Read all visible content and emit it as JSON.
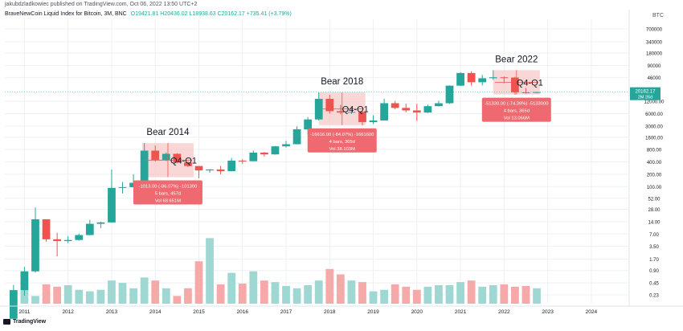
{
  "header": {
    "publisher": "jakubdzladkowiec published on TradingView.com, Oct 06, 2022 13:50 UTC+2",
    "symbol_line": "BraveNewCoin Liquid Index for Bitcoin, 3M, BNC",
    "open": "O19421.81",
    "high": "H20436.02",
    "low": "L18938.63",
    "close": "C20162.17",
    "change": "+735.41 (+3.79%)",
    "currency": "BTC"
  },
  "footer": {
    "brand": "TradingView"
  },
  "colors": {
    "up": "#26a69a",
    "down": "#ef5350",
    "vol_up": "#9fd8d2",
    "vol_down": "#f5a9a9",
    "bg": "#ffffff",
    "grid": "#eef0f3",
    "axis_text": "#131722",
    "badge_fill": "#ee6a70",
    "zone_fill": "#f7c9ca",
    "price_tag": "#26a69a"
  },
  "chart_data": {
    "type": "candlestick",
    "title": "BraveNewCoin Liquid Index for Bitcoin, 3M, BNC",
    "interval": "3M",
    "y_scale": "log",
    "ylim": [
      0.14,
      1200000
    ],
    "y_ticks": [
      0.23,
      0.45,
      0.9,
      1.7,
      3.5,
      7.0,
      14.0,
      28.0,
      52.0,
      100.0,
      200.0,
      400.0,
      800.0,
      1600.0,
      3000.0,
      6000.0,
      12000.0,
      46000,
      90000,
      180000,
      340000,
      700000
    ],
    "y_tick_labels": [
      "0.23",
      "0.45",
      "0.90",
      "1.70",
      "3.50",
      "7.00",
      "14.00",
      "28.00",
      "52.00",
      "100.00",
      "200.00",
      "400.00",
      "800.00",
      "1600.00",
      "3000.00",
      "6000.00",
      "12000.00",
      "46000",
      "90000",
      "180000",
      "340000",
      "700000"
    ],
    "x_labels": [
      "2011",
      "2012",
      "2013",
      "2014",
      "2015",
      "2016",
      "2017",
      "2018",
      "2019",
      "2020",
      "2021",
      "2022",
      "2023",
      "2024"
    ],
    "x_label_years": [
      2011,
      2012,
      2013,
      2014,
      2015,
      2016,
      2017,
      2018,
      2019,
      2020,
      2021,
      2022,
      2023,
      2024
    ],
    "xlim": [
      2010.55,
      2024.85
    ],
    "candles": [
      {
        "t": 2010.75,
        "o": 0.06,
        "h": 0.4,
        "l": 0.06,
        "c": 0.3
      },
      {
        "t": 2011.0,
        "o": 0.3,
        "h": 1.1,
        "l": 0.22,
        "c": 0.86
      },
      {
        "t": 2011.25,
        "o": 0.86,
        "h": 31,
        "l": 0.8,
        "c": 16
      },
      {
        "t": 2011.5,
        "o": 16,
        "h": 16,
        "l": 4.5,
        "c": 5.2
      },
      {
        "t": 2011.75,
        "o": 5.2,
        "h": 7.5,
        "l": 2.0,
        "c": 4.7
      },
      {
        "t": 2012.0,
        "o": 4.7,
        "h": 6.2,
        "l": 4.2,
        "c": 5.0
      },
      {
        "t": 2012.25,
        "o": 5.0,
        "h": 7.2,
        "l": 4.8,
        "c": 6.6
      },
      {
        "t": 2012.5,
        "o": 6.6,
        "h": 15.4,
        "l": 6.5,
        "c": 12.4
      },
      {
        "t": 2012.75,
        "o": 12.4,
        "h": 14.0,
        "l": 9.8,
        "c": 13.4
      },
      {
        "t": 2013.0,
        "o": 13.4,
        "h": 262,
        "l": 13.2,
        "c": 93
      },
      {
        "t": 2013.25,
        "o": 93,
        "h": 130,
        "l": 68,
        "c": 97
      },
      {
        "t": 2013.5,
        "o": 97,
        "h": 200,
        "l": 95,
        "c": 124
      },
      {
        "t": 2013.75,
        "o": 124,
        "h": 1151,
        "l": 120,
        "c": 754
      },
      {
        "t": 2014.0,
        "o": 754,
        "h": 1000,
        "l": 410,
        "c": 450
      },
      {
        "t": 2014.25,
        "o": 450,
        "h": 680,
        "l": 420,
        "c": 630
      },
      {
        "t": 2014.5,
        "o": 630,
        "h": 650,
        "l": 370,
        "c": 388
      },
      {
        "t": 2014.75,
        "o": 388,
        "h": 420,
        "l": 300,
        "c": 318
      },
      {
        "t": 2015.0,
        "o": 318,
        "h": 318,
        "l": 160,
        "c": 248
      },
      {
        "t": 2015.25,
        "o": 248,
        "h": 265,
        "l": 218,
        "c": 262
      },
      {
        "t": 2015.5,
        "o": 262,
        "h": 320,
        "l": 200,
        "c": 238
      },
      {
        "t": 2015.75,
        "o": 238,
        "h": 500,
        "l": 235,
        "c": 430
      },
      {
        "t": 2016.0,
        "o": 430,
        "h": 470,
        "l": 360,
        "c": 416
      },
      {
        "t": 2016.25,
        "o": 416,
        "h": 760,
        "l": 415,
        "c": 673
      },
      {
        "t": 2016.5,
        "o": 673,
        "h": 700,
        "l": 540,
        "c": 610
      },
      {
        "t": 2016.75,
        "o": 610,
        "h": 980,
        "l": 600,
        "c": 960
      },
      {
        "t": 2017.0,
        "o": 960,
        "h": 1300,
        "l": 890,
        "c": 1080
      },
      {
        "t": 2017.25,
        "o": 1080,
        "h": 2970,
        "l": 1070,
        "c": 2490
      },
      {
        "t": 2017.5,
        "o": 2490,
        "h": 4960,
        "l": 1850,
        "c": 4340
      },
      {
        "t": 2017.75,
        "o": 4340,
        "h": 19800,
        "l": 4100,
        "c": 13800
      },
      {
        "t": 2018.0,
        "o": 13800,
        "h": 17200,
        "l": 6000,
        "c": 6900
      },
      {
        "t": 2018.25,
        "o": 6900,
        "h": 9900,
        "l": 5800,
        "c": 6390
      },
      {
        "t": 2018.5,
        "o": 6390,
        "h": 8490,
        "l": 5880,
        "c": 6625
      },
      {
        "t": 2018.75,
        "o": 6625,
        "h": 6800,
        "l": 3150,
        "c": 3740
      },
      {
        "t": 2019.0,
        "o": 3740,
        "h": 5500,
        "l": 3350,
        "c": 4100
      },
      {
        "t": 2019.25,
        "o": 4100,
        "h": 13880,
        "l": 4050,
        "c": 10800
      },
      {
        "t": 2019.5,
        "o": 10800,
        "h": 12300,
        "l": 7700,
        "c": 8300
      },
      {
        "t": 2019.75,
        "o": 8300,
        "h": 10500,
        "l": 6500,
        "c": 7200
      },
      {
        "t": 2020.0,
        "o": 7200,
        "h": 10500,
        "l": 4000,
        "c": 6400
      },
      {
        "t": 2020.25,
        "o": 6400,
        "h": 10000,
        "l": 6200,
        "c": 9140
      },
      {
        "t": 2020.5,
        "o": 9140,
        "h": 12400,
        "l": 9000,
        "c": 10780
      },
      {
        "t": 2020.75,
        "o": 10780,
        "h": 29300,
        "l": 10400,
        "c": 28900
      },
      {
        "t": 2021.0,
        "o": 28900,
        "h": 61800,
        "l": 28200,
        "c": 58800
      },
      {
        "t": 2021.25,
        "o": 58800,
        "h": 64800,
        "l": 29000,
        "c": 35000
      },
      {
        "t": 2021.5,
        "o": 35000,
        "h": 52900,
        "l": 29300,
        "c": 43800
      },
      {
        "t": 2021.75,
        "o": 43800,
        "h": 69000,
        "l": 40000,
        "c": 46200
      },
      {
        "t": 2022.0,
        "o": 46200,
        "h": 48200,
        "l": 33000,
        "c": 45500
      },
      {
        "t": 2022.25,
        "o": 45500,
        "h": 47400,
        "l": 17600,
        "c": 19900
      },
      {
        "t": 2022.5,
        "o": 19900,
        "h": 25200,
        "l": 18600,
        "c": 19400
      },
      {
        "t": 2022.75,
        "o": 19421.81,
        "h": 20436.02,
        "l": 18938.63,
        "c": 20162.17
      }
    ],
    "volume_scale_max": 100,
    "volume": [
      4,
      18,
      10,
      25,
      22,
      24,
      18,
      16,
      18,
      30,
      27,
      20,
      34,
      30,
      20,
      10,
      20,
      55,
      85,
      25,
      40,
      26,
      42,
      30,
      28,
      23,
      20,
      24,
      30,
      45,
      38,
      30,
      28,
      16,
      18,
      25,
      22,
      18,
      22,
      24,
      24,
      28,
      30,
      22,
      24,
      25,
      22,
      23,
      20
    ],
    "price_label": "20162.17",
    "price_label_sub": "2M 26d",
    "annotations": [
      {
        "label": "Bear 2014",
        "sublabel": "Q4-Q1",
        "zone_t": [
          2013.7,
          2014.88
        ],
        "zone_p": [
          170,
          1150
        ],
        "badge_lines": [
          "-1013.00 (-86.07%) -101300",
          "5 bars, 457d",
          "Vol 68.651M"
        ]
      },
      {
        "label": "Bear 2018",
        "sublabel": "Q4-Q1",
        "zone_t": [
          2017.75,
          2018.82
        ],
        "zone_p": [
          3150,
          19800
        ],
        "badge_lines": [
          "-16616.00 (-84.07%) -1661600",
          "4 bars, 365d",
          "Vol 38.103M"
        ]
      },
      {
        "label": "Bear 2022",
        "sublabel": "Q4-Q1",
        "zone_t": [
          2021.75,
          2022.82
        ],
        "zone_p": [
          17600,
          69000
        ],
        "badge_lines": [
          "-51330.00 (-74.39%) -5133000",
          "4 bars, 365d",
          "Vol 13.066M"
        ]
      }
    ]
  }
}
